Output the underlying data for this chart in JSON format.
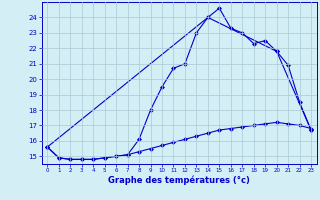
{
  "line1_x": [
    0,
    1,
    2,
    3,
    4,
    5,
    6,
    7,
    8,
    9,
    10,
    11,
    12,
    13,
    14,
    15,
    16,
    17,
    18,
    19,
    20,
    21,
    22,
    23
  ],
  "line1_y": [
    15.6,
    14.9,
    14.8,
    14.8,
    14.8,
    14.9,
    15.0,
    15.1,
    16.1,
    18.0,
    19.5,
    20.7,
    21.0,
    23.0,
    24.0,
    24.6,
    23.3,
    23.0,
    22.3,
    22.5,
    21.8,
    20.9,
    18.5,
    16.7
  ],
  "line2_x": [
    0,
    14,
    20,
    23
  ],
  "line2_y": [
    15.6,
    24.0,
    21.8,
    16.7
  ],
  "line3_x": [
    0,
    1,
    2,
    3,
    4,
    5,
    6,
    7,
    8,
    9,
    10,
    11,
    12,
    13,
    14,
    15,
    16,
    17,
    18,
    19,
    20,
    21,
    22,
    23
  ],
  "line3_y": [
    15.6,
    14.9,
    14.8,
    14.8,
    14.8,
    14.9,
    15.0,
    15.1,
    15.3,
    15.5,
    15.7,
    15.9,
    16.1,
    16.3,
    16.5,
    16.7,
    16.8,
    16.9,
    17.0,
    17.1,
    17.2,
    17.1,
    17.0,
    16.8
  ],
  "line_color": "#0000cc",
  "bg_color": "#d4eef5",
  "grid_color": "#aac8d8",
  "xlabel": "Graphe des températures (°c)",
  "xlabel_color": "#0000cc",
  "tick_color": "#0000cc",
  "xlim": [
    -0.5,
    23.5
  ],
  "ylim": [
    14.5,
    25.0
  ],
  "yticks": [
    15,
    16,
    17,
    18,
    19,
    20,
    21,
    22,
    23,
    24
  ],
  "xticks": [
    0,
    1,
    2,
    3,
    4,
    5,
    6,
    7,
    8,
    9,
    10,
    11,
    12,
    13,
    14,
    15,
    16,
    17,
    18,
    19,
    20,
    21,
    22,
    23
  ],
  "marker": "D",
  "marker_size": 2.0
}
